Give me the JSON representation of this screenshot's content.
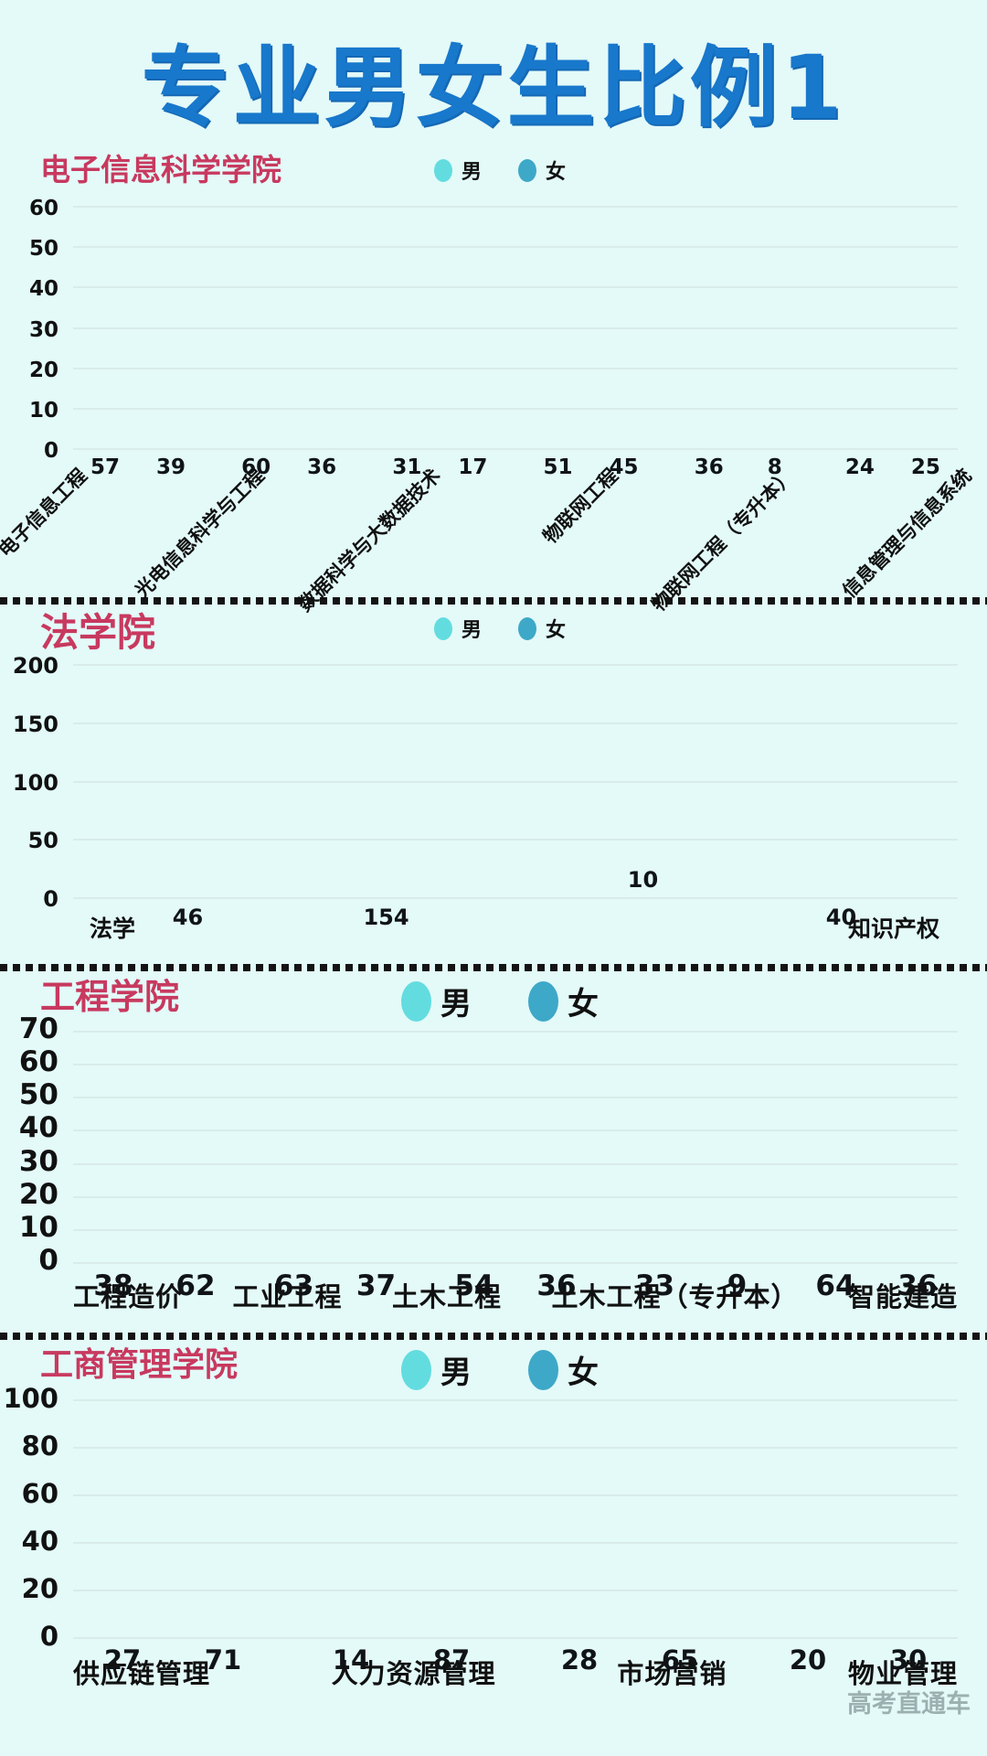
{
  "page": {
    "title": "专业男女生比例1",
    "watermark": "高考直通车"
  },
  "colors": {
    "male": "#63DCE0",
    "female": "#3EA8C8",
    "title": "#1878CC",
    "section_title": "#C8395F",
    "background": "#E3FAF8",
    "grid": "#D9ECE9",
    "value_text": "#101418"
  },
  "legend": {
    "male_label": "男",
    "female_label": "女"
  },
  "chart_data": [
    {
      "type": "bar",
      "title": "电子信息科学学院",
      "ylim": [
        0,
        60
      ],
      "yticks": [
        0,
        10,
        20,
        30,
        40,
        50,
        60
      ],
      "grid": true,
      "legend_position": "top-center",
      "rotated_xlabels": true,
      "categories": [
        "电子信息工程",
        "光电信息科学与工程",
        "数据科学与大数据技术",
        "物联网工程",
        "物联网工程（专升本）",
        "信息管理与信息系统"
      ],
      "series": [
        {
          "name": "男",
          "values": [
            57,
            60,
            31,
            51,
            36,
            24
          ]
        },
        {
          "name": "女",
          "values": [
            39,
            36,
            17,
            45,
            8,
            25
          ]
        }
      ]
    },
    {
      "type": "bar",
      "title": "法学院",
      "ylim": [
        0,
        200
      ],
      "yticks": [
        0,
        50,
        100,
        150,
        200
      ],
      "grid": true,
      "legend_position": "top-center",
      "rotated_xlabels": false,
      "categories": [
        "法学",
        "知识产权"
      ],
      "series": [
        {
          "name": "男",
          "values": [
            46,
            10
          ]
        },
        {
          "name": "女",
          "values": [
            154,
            40
          ]
        }
      ]
    },
    {
      "type": "bar",
      "title": "工程学院",
      "ylim": [
        0,
        70
      ],
      "yticks": [
        0,
        10,
        20,
        30,
        40,
        50,
        60,
        70
      ],
      "grid": true,
      "legend_position": "top-center",
      "rotated_xlabels": false,
      "categories": [
        "工程造价",
        "工业工程",
        "土木工程",
        "土木工程（专升本）",
        "智能建造"
      ],
      "series": [
        {
          "name": "男",
          "values": [
            38,
            63,
            54,
            33,
            64
          ]
        },
        {
          "name": "女",
          "values": [
            62,
            37,
            36,
            9,
            36
          ]
        }
      ]
    },
    {
      "type": "bar",
      "title": "工商管理学院",
      "ylim": [
        0,
        100
      ],
      "yticks": [
        0,
        20,
        40,
        60,
        80,
        100
      ],
      "grid": true,
      "legend_position": "top-center",
      "rotated_xlabels": false,
      "categories": [
        "供应链管理",
        "人力资源管理",
        "市场营销",
        "物业管理"
      ],
      "series": [
        {
          "name": "男",
          "values": [
            27,
            14,
            28,
            20
          ]
        },
        {
          "name": "女",
          "values": [
            71,
            87,
            65,
            30
          ]
        }
      ]
    }
  ]
}
